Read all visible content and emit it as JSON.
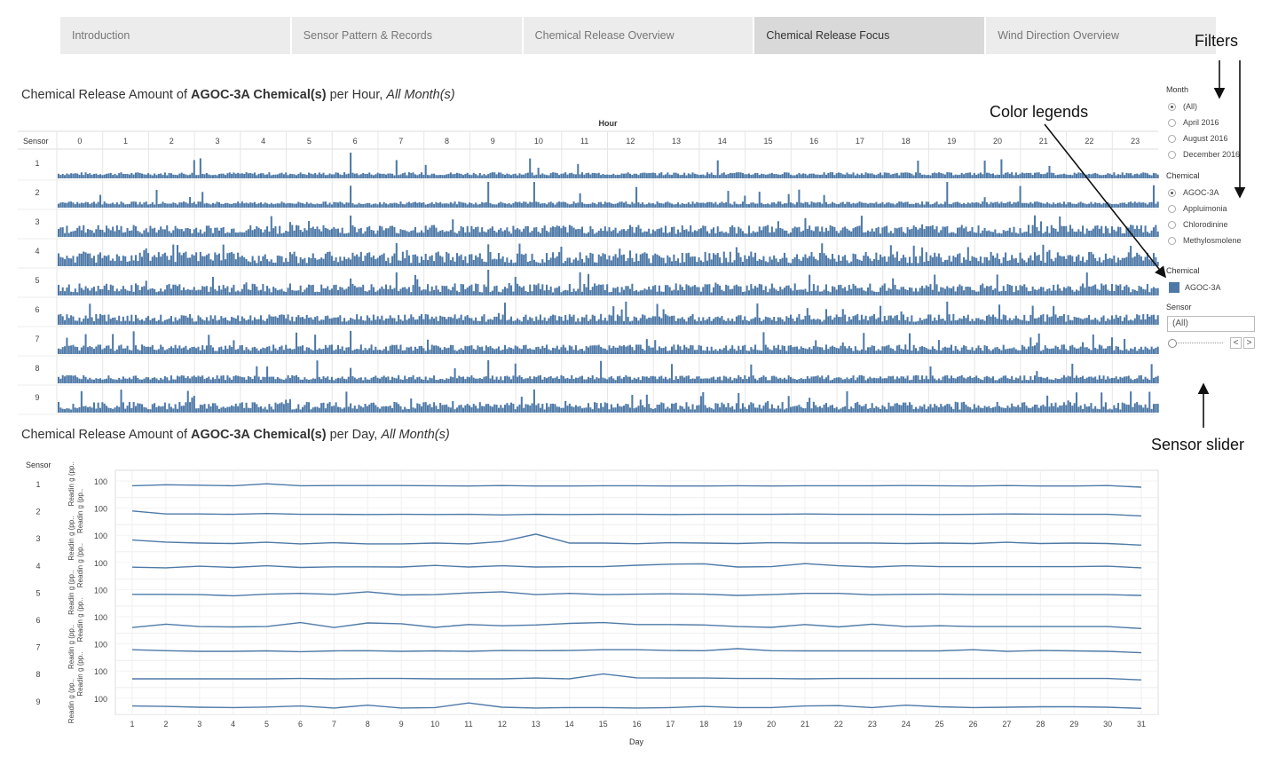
{
  "tabs": [
    {
      "label": "Introduction",
      "active": false
    },
    {
      "label": "Sensor Pattern & Records",
      "active": false
    },
    {
      "label": "Chemical Release Overview",
      "active": false
    },
    {
      "label": "Chemical Release Focus",
      "active": true
    },
    {
      "label": "Wind Direction Overview",
      "active": false
    }
  ],
  "hour_title": {
    "prefix": "Chemical Release Amount of ",
    "bold": "AGOC-3A Chemical(s)",
    "middle": " per Hour, ",
    "italic": "All Month(s)"
  },
  "day_title": {
    "prefix": "Chemical Release Amount of ",
    "bold": "AGOC-3A Chemical(s)",
    "middle": " per Day, ",
    "italic": "All Month(s)"
  },
  "filters": {
    "month_title": "Month",
    "month_options": [
      {
        "label": "(All)",
        "selected": true
      },
      {
        "label": "April 2016",
        "selected": false
      },
      {
        "label": "August 2016",
        "selected": false
      },
      {
        "label": "December 2016",
        "selected": false
      }
    ],
    "chemical_title": "Chemical",
    "chemical_options": [
      {
        "label": "AGOC-3A",
        "selected": true
      },
      {
        "label": "Appluimonia",
        "selected": false
      },
      {
        "label": "Chlorodinine",
        "selected": false
      },
      {
        "label": "Methylosmolene",
        "selected": false
      }
    ],
    "legend_title": "Chemical",
    "legend_item": "AGOC-3A",
    "legend_color": "#4e79a7",
    "sensor_title": "Sensor",
    "sensor_value": "(All)",
    "prev_label": "<",
    "next_label": ">"
  },
  "annotations": {
    "filters": "Filters",
    "color_legends": "Color legends",
    "sensor_slider": "Sensor slider"
  },
  "chart_data": [
    {
      "type": "bar",
      "title": "Chemical Release Amount of AGOC-3A Chemical(s) per Hour, All Month(s)",
      "column_header": "Hour",
      "row_header": "Sensor",
      "hours": [
        0,
        1,
        2,
        3,
        4,
        5,
        6,
        7,
        8,
        9,
        10,
        11,
        12,
        13,
        14,
        15,
        16,
        17,
        18,
        19,
        20,
        21,
        22,
        23
      ],
      "sensors": [
        1,
        2,
        3,
        4,
        5,
        6,
        7,
        8,
        9
      ],
      "color": "#4e79a7",
      "spikes": [
        {
          "sensor": 1,
          "hour": 6,
          "level": 1.0
        },
        {
          "sensor": 1,
          "hour": 14,
          "level": 0.7
        },
        {
          "sensor": 2,
          "hour": 6,
          "level": 0.85
        },
        {
          "sensor": 2,
          "hour": 9,
          "level": 1.0
        },
        {
          "sensor": 2,
          "hour": 10,
          "level": 1.0
        },
        {
          "sensor": 2,
          "hour": 19,
          "level": 1.0
        },
        {
          "sensor": 4,
          "hour": 7,
          "level": 0.9
        },
        {
          "sensor": 4,
          "hour": 9,
          "level": 0.85
        },
        {
          "sensor": 5,
          "hour": 7,
          "level": 0.9
        },
        {
          "sensor": 5,
          "hour": 9,
          "level": 1.0
        },
        {
          "sensor": 5,
          "hour": 11,
          "level": 0.9
        },
        {
          "sensor": 6,
          "hour": 12,
          "level": 0.9
        },
        {
          "sensor": 6,
          "hour": 19,
          "level": 0.9
        },
        {
          "sensor": 7,
          "hour": 6,
          "level": 0.9
        },
        {
          "sensor": 7,
          "hour": 15,
          "level": 0.85
        },
        {
          "sensor": 7,
          "hour": 21,
          "level": 0.8
        },
        {
          "sensor": 8,
          "hour": 6,
          "level": 0.6
        },
        {
          "sensor": 8,
          "hour": 9,
          "level": 0.9
        },
        {
          "sensor": 8,
          "hour": 13,
          "level": 0.75
        },
        {
          "sensor": 9,
          "hour": 10,
          "level": 0.9
        }
      ]
    },
    {
      "type": "line",
      "title": "Chemical Release Amount of AGOC-3A Chemical(s) per Day, All Month(s)",
      "xlabel": "Day",
      "row_header": "Sensor",
      "ylabel": "Readin g (pp..",
      "ytick": "100",
      "x": [
        1,
        2,
        3,
        4,
        5,
        6,
        7,
        8,
        9,
        10,
        11,
        12,
        13,
        14,
        15,
        16,
        17,
        18,
        19,
        20,
        21,
        22,
        23,
        24,
        25,
        26,
        27,
        28,
        29,
        30,
        31
      ],
      "color": "#4e79a7",
      "series": [
        {
          "sensor": "1",
          "values": [
            0.45,
            0.5,
            0.48,
            0.45,
            0.55,
            0.45,
            0.46,
            0.46,
            0.46,
            0.45,
            0.44,
            0.46,
            0.44,
            0.44,
            0.45,
            0.45,
            0.44,
            0.44,
            0.45,
            0.44,
            0.45,
            0.45,
            0.45,
            0.46,
            0.45,
            0.44,
            0.46,
            0.44,
            0.44,
            0.46,
            0.38
          ]
        },
        {
          "sensor": "2",
          "values": [
            0.55,
            0.4,
            0.4,
            0.38,
            0.42,
            0.38,
            0.38,
            0.37,
            0.38,
            0.37,
            0.38,
            0.35,
            0.38,
            0.37,
            0.38,
            0.38,
            0.37,
            0.38,
            0.38,
            0.38,
            0.4,
            0.38,
            0.38,
            0.38,
            0.37,
            0.38,
            0.4,
            0.39,
            0.38,
            0.38,
            0.3
          ]
        },
        {
          "sensor": "3",
          "values": [
            0.45,
            0.35,
            0.3,
            0.28,
            0.34,
            0.26,
            0.32,
            0.26,
            0.26,
            0.3,
            0.26,
            0.38,
            0.75,
            0.3,
            0.3,
            0.27,
            0.32,
            0.3,
            0.28,
            0.32,
            0.3,
            0.3,
            0.3,
            0.28,
            0.3,
            0.28,
            0.34,
            0.28,
            0.3,
            0.28,
            0.2
          ]
        },
        {
          "sensor": "4",
          "values": [
            0.45,
            0.42,
            0.5,
            0.44,
            0.52,
            0.44,
            0.47,
            0.47,
            0.46,
            0.54,
            0.46,
            0.52,
            0.46,
            0.48,
            0.48,
            0.55,
            0.6,
            0.62,
            0.46,
            0.48,
            0.63,
            0.52,
            0.46,
            0.52,
            0.48,
            0.48,
            0.48,
            0.48,
            0.48,
            0.5,
            0.42
          ]
        },
        {
          "sensor": "5",
          "values": [
            0.45,
            0.45,
            0.44,
            0.38,
            0.46,
            0.5,
            0.45,
            0.58,
            0.42,
            0.44,
            0.52,
            0.58,
            0.44,
            0.5,
            0.44,
            0.46,
            0.48,
            0.46,
            0.4,
            0.44,
            0.5,
            0.5,
            0.43,
            0.45,
            0.46,
            0.44,
            0.44,
            0.44,
            0.44,
            0.44,
            0.4
          ]
        },
        {
          "sensor": "6",
          "values": [
            0.15,
            0.32,
            0.2,
            0.18,
            0.2,
            0.4,
            0.15,
            0.38,
            0.34,
            0.16,
            0.3,
            0.24,
            0.28,
            0.36,
            0.4,
            0.3,
            0.3,
            0.28,
            0.2,
            0.16,
            0.3,
            0.18,
            0.32,
            0.2,
            0.24,
            0.2,
            0.2,
            0.2,
            0.2,
            0.2,
            0.1
          ]
        },
        {
          "sensor": "7",
          "values": [
            0.4,
            0.35,
            0.32,
            0.32,
            0.34,
            0.3,
            0.34,
            0.35,
            0.32,
            0.34,
            0.32,
            0.36,
            0.35,
            0.36,
            0.4,
            0.4,
            0.36,
            0.35,
            0.45,
            0.35,
            0.34,
            0.34,
            0.34,
            0.34,
            0.34,
            0.4,
            0.32,
            0.36,
            0.34,
            0.32,
            0.25
          ]
        },
        {
          "sensor": "8",
          "values": [
            0.3,
            0.3,
            0.3,
            0.3,
            0.3,
            0.32,
            0.3,
            0.32,
            0.32,
            0.3,
            0.3,
            0.3,
            0.34,
            0.3,
            0.55,
            0.35,
            0.34,
            0.34,
            0.32,
            0.32,
            0.3,
            0.32,
            0.32,
            0.32,
            0.32,
            0.32,
            0.32,
            0.32,
            0.32,
            0.32,
            0.25
          ]
        },
        {
          "sensor": "9",
          "values": [
            0.3,
            0.28,
            0.24,
            0.22,
            0.25,
            0.3,
            0.2,
            0.34,
            0.2,
            0.22,
            0.45,
            0.24,
            0.2,
            0.22,
            0.22,
            0.2,
            0.22,
            0.28,
            0.22,
            0.22,
            0.3,
            0.32,
            0.22,
            0.34,
            0.26,
            0.22,
            0.24,
            0.26,
            0.26,
            0.24,
            0.18
          ]
        }
      ]
    }
  ]
}
